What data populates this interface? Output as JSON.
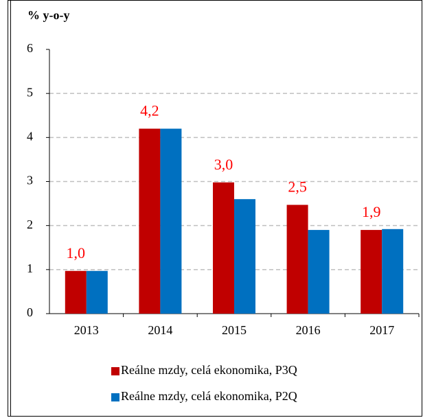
{
  "chart_data": {
    "type": "bar",
    "ylabel": "% y-o-y",
    "categories": [
      "2013",
      "2014",
      "2015",
      "2016",
      "2017"
    ],
    "series": [
      {
        "name": "Reálne mzdy, celá ekonomika, P3Q",
        "color": "#c00000",
        "values": [
          0.97,
          4.2,
          2.98,
          2.47,
          1.9
        ],
        "value_labels": [
          "1,0",
          "4,2",
          "3,0",
          "2,5",
          "1,9"
        ]
      },
      {
        "name": "Reálne mzdy, celá ekonomika, P2Q",
        "color": "#0070c0",
        "values": [
          0.97,
          4.2,
          2.6,
          1.9,
          1.92
        ]
      }
    ],
    "ylim": [
      0,
      6
    ],
    "yticks": [
      0,
      1,
      2,
      3,
      4,
      5,
      6
    ],
    "grid": true,
    "legend": "bottom"
  }
}
